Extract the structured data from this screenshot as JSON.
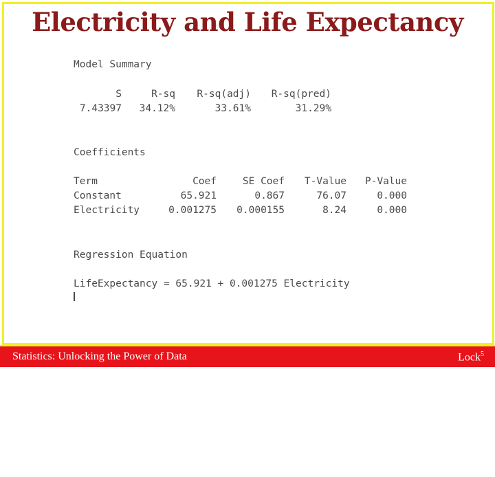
{
  "title": "Electricity and Life Expectancy",
  "model_summary": {
    "heading": "Model Summary",
    "headers": [
      "S",
      "R-sq",
      "R-sq(adj)",
      "R-sq(pred)"
    ],
    "values": [
      "7.43397",
      "34.12%",
      "33.61%",
      "31.29%"
    ]
  },
  "coefficients": {
    "heading": "Coefficients",
    "headers": [
      "Term",
      "Coef",
      "SE Coef",
      "T-Value",
      "P-Value"
    ],
    "rows": [
      [
        "Constant",
        "65.921",
        "0.867",
        "76.07",
        "0.000"
      ],
      [
        "Electricity",
        "0.001275",
        "0.000155",
        "8.24",
        "0.000"
      ]
    ]
  },
  "regression": {
    "heading": "Regression Equation",
    "equation": "LifeExpectancy = 65.921 + 0.001275 Electricity"
  },
  "footer": {
    "left": "Statistics: Unlocking the Power of Data",
    "right_text": "Lock",
    "right_sup": "5"
  },
  "colors": {
    "title": "#8b1a1a",
    "footer_bg": "#e8141b",
    "frame_border": "#f2ee2a",
    "output_text": "#4a4a4a"
  }
}
